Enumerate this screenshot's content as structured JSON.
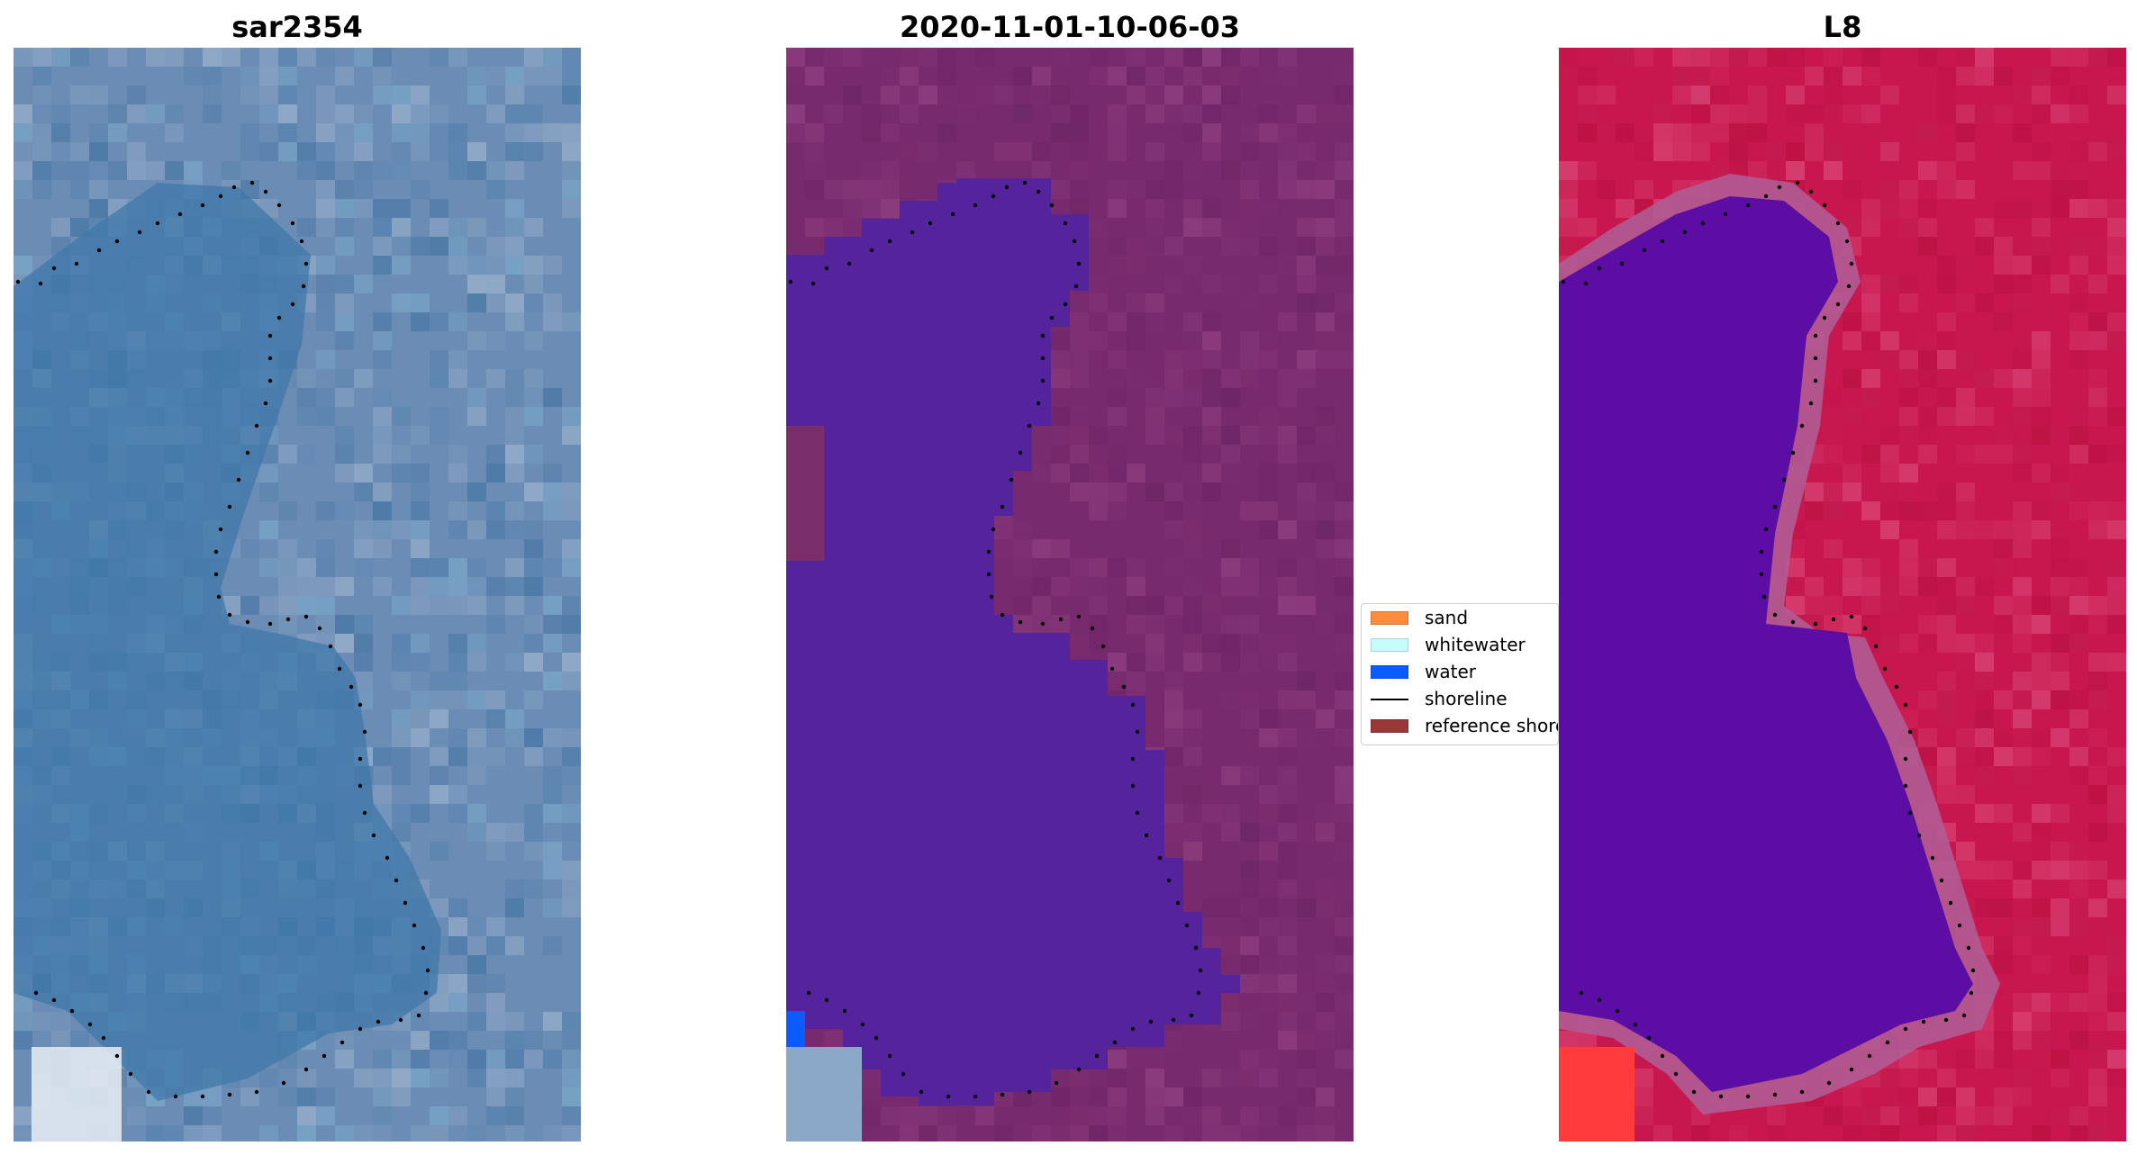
{
  "panels": [
    {
      "title": "sar2354",
      "kind": "satellite-rgb"
    },
    {
      "title": "2020-11-01-10-06-03",
      "kind": "classified-overlay"
    },
    {
      "title": "L8",
      "kind": "index-map"
    }
  ],
  "legend": {
    "placement": "center, between second and third panel",
    "items": [
      {
        "label": "sand",
        "type": "patch",
        "color": "#fe8c3c"
      },
      {
        "label": "whitewater",
        "type": "patch",
        "color": "#c8fcfc"
      },
      {
        "label": "water",
        "type": "patch",
        "color": "#0a5cff"
      },
      {
        "label": "shoreline",
        "type": "line",
        "color": "#000000"
      },
      {
        "label": "reference shoreline",
        "type": "patch",
        "color": "#9a3838"
      }
    ]
  },
  "colors": {
    "rgb_water": "#4a7fae",
    "rgb_land": "#6c8cb4",
    "overlay_water": "#55239b",
    "overlay_land": "#772a6e",
    "index_water": "#5c0ea4",
    "index_land": "#c8174e",
    "shoreline_dots": "#000000"
  }
}
